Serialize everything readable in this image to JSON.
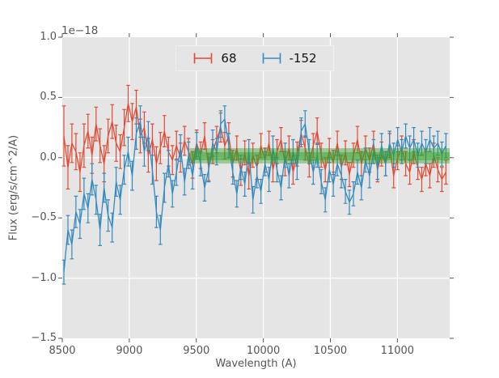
{
  "figure": {
    "background": "#ffffff",
    "axes_background": "#e5e5e5",
    "grid_color": "#ffffff",
    "tick_color": "#555555",
    "text_color": "#555555"
  },
  "chart_data": {
    "type": "line",
    "subtype": "errorbar",
    "title": "",
    "xlabel": "Wavelength (A)",
    "ylabel": "Flux (erg/s/cm^2/A)",
    "offset_text": "1e−18",
    "xlim": [
      8500,
      11390
    ],
    "ylim": [
      -1.5,
      1.0
    ],
    "grid": true,
    "xticks": [
      8500,
      9000,
      9500,
      10000,
      10500,
      11000
    ],
    "yticks": [
      1.0,
      0.5,
      0.0,
      -0.5,
      -1.0,
      -1.5
    ],
    "xtick_labels": [
      "8500",
      "9000",
      "9500",
      "10000",
      "10500",
      "11000"
    ],
    "ytick_labels": [
      "1.0",
      "0.5",
      "0.0",
      "−0.5",
      "−1.0",
      "−1.5"
    ],
    "legend": {
      "position": "upper center",
      "items": [
        {
          "label": "68",
          "color": "#e24a33"
        },
        {
          "label": "-152",
          "color": "#348abd"
        }
      ]
    },
    "band": {
      "color": "#33a02c",
      "x_start": 9450,
      "x_end": 11390,
      "outer": [
        -0.048,
        0.079
      ],
      "inner": [
        -0.021,
        0.046
      ]
    },
    "x": [
      8512,
      8542,
      8572,
      8602,
      8632,
      8662,
      8692,
      8722,
      8752,
      8782,
      8812,
      8842,
      8872,
      8902,
      8932,
      8962,
      8992,
      9022,
      9052,
      9082,
      9112,
      9142,
      9172,
      9202,
      9232,
      9262,
      9292,
      9322,
      9352,
      9382,
      9412,
      9442,
      9472,
      9502,
      9532,
      9562,
      9592,
      9622,
      9652,
      9682,
      9712,
      9742,
      9772,
      9802,
      9832,
      9862,
      9892,
      9922,
      9952,
      9982,
      10012,
      10042,
      10072,
      10102,
      10132,
      10162,
      10192,
      10222,
      10252,
      10282,
      10312,
      10342,
      10372,
      10402,
      10432,
      10462,
      10492,
      10522,
      10552,
      10582,
      10612,
      10642,
      10672,
      10702,
      10732,
      10762,
      10792,
      10822,
      10852,
      10882,
      10912,
      10942,
      10972,
      11002,
      11032,
      11062,
      11092,
      11122,
      11152,
      11182,
      11212,
      11242,
      11272,
      11302,
      11332,
      11362
    ],
    "series": [
      {
        "name": "68",
        "color": "#e24a33",
        "y": [
          0.18,
          -0.08,
          0.12,
          0.05,
          -0.12,
          0.1,
          0.22,
          0.02,
          0.28,
          0.1,
          -0.05,
          0.18,
          0.3,
          0.12,
          0.05,
          0.25,
          0.45,
          0.3,
          0.42,
          0.18,
          0.25,
          0.02,
          0.15,
          -0.05,
          0.08,
          0.22,
          0.05,
          -0.02,
          0.1,
          0.0,
          0.14,
          0.05,
          -0.06,
          0.12,
          0.02,
          0.18,
          -0.08,
          0.05,
          0.15,
          0.25,
          0.1,
          0.18,
          -0.05,
          0.08,
          -0.12,
          0.04,
          -0.15,
          0.02,
          -0.08,
          0.1,
          -0.02,
          0.12,
          -0.1,
          0.05,
          0.15,
          -0.05,
          0.08,
          -0.12,
          0.03,
          0.2,
          0.08,
          -0.06,
          0.1,
          0.22,
          0.02,
          -0.1,
          0.06,
          -0.04,
          0.12,
          -0.08,
          0.04,
          -0.14,
          0.02,
          0.15,
          -0.05,
          0.08,
          -0.02,
          0.12,
          -0.1,
          0.03,
          -0.05,
          0.1,
          -0.15,
          0.0,
          0.08,
          -0.05,
          -0.12,
          0.05,
          -0.08,
          -0.18,
          -0.05,
          -0.15,
          0.02,
          -0.1,
          -0.18,
          -0.12
        ],
        "yerr": [
          0.25,
          0.18,
          0.16,
          0.15,
          0.16,
          0.18,
          0.14,
          0.15,
          0.14,
          0.14,
          0.15,
          0.14,
          0.14,
          0.15,
          0.14,
          0.15,
          0.15,
          0.15,
          0.14,
          0.14,
          0.13,
          0.14,
          0.13,
          0.14,
          0.13,
          0.13,
          0.12,
          0.12,
          0.12,
          0.12,
          0.12,
          0.11,
          0.11,
          0.11,
          0.11,
          0.11,
          0.11,
          0.1,
          0.11,
          0.12,
          0.11,
          0.11,
          0.11,
          0.1,
          0.11,
          0.1,
          0.11,
          0.1,
          0.1,
          0.1,
          0.1,
          0.1,
          0.1,
          0.1,
          0.1,
          0.1,
          0.1,
          0.1,
          0.1,
          0.11,
          0.1,
          0.1,
          0.1,
          0.11,
          0.1,
          0.1,
          0.1,
          0.1,
          0.1,
          0.1,
          0.1,
          0.1,
          0.1,
          0.11,
          0.1,
          0.1,
          0.1,
          0.1,
          0.1,
          0.1,
          0.1,
          0.1,
          0.1,
          0.1,
          0.1,
          0.1,
          0.1,
          0.1,
          0.1,
          0.1,
          0.1,
          0.1,
          0.1,
          0.1,
          0.1,
          0.1
        ]
      },
      {
        "name": "-152",
        "color": "#348abd",
        "y": [
          -0.95,
          -0.6,
          -0.72,
          -0.45,
          -0.55,
          -0.3,
          -0.42,
          -0.18,
          -0.35,
          -0.6,
          -0.25,
          -0.48,
          -0.58,
          -0.2,
          -0.35,
          -0.1,
          0.05,
          -0.15,
          0.2,
          0.3,
          0.05,
          0.18,
          -0.1,
          -0.45,
          -0.6,
          -0.25,
          -0.05,
          -0.3,
          -0.12,
          0.08,
          -0.2,
          0.02,
          -0.15,
          0.1,
          -0.05,
          -0.25,
          -0.1,
          0.12,
          0.05,
          0.28,
          0.32,
          0.1,
          -0.12,
          -0.3,
          -0.08,
          -0.22,
          0.05,
          -0.35,
          -0.15,
          -0.28,
          -0.05,
          -0.18,
          0.08,
          -0.1,
          -0.25,
          0.02,
          -0.15,
          0.05,
          -0.08,
          0.22,
          0.28,
          0.05,
          -0.12,
          0.02,
          -0.2,
          -0.35,
          -0.1,
          -0.22,
          -0.05,
          -0.15,
          -0.28,
          -0.37,
          -0.3,
          -0.12,
          -0.25,
          -0.02,
          -0.15,
          0.05,
          -0.08,
          0.1,
          -0.05,
          0.12,
          0.02,
          0.15,
          0.05,
          0.18,
          0.08,
          0.15,
          0.02,
          0.12,
          0.05,
          0.15,
          0.08,
          0.12,
          0.03,
          0.1
        ],
        "yerr": [
          0.1,
          0.12,
          0.12,
          0.13,
          0.12,
          0.13,
          0.12,
          0.13,
          0.12,
          0.13,
          0.12,
          0.13,
          0.12,
          0.12,
          0.12,
          0.12,
          0.12,
          0.12,
          0.13,
          0.13,
          0.12,
          0.12,
          0.12,
          0.13,
          0.12,
          0.12,
          0.11,
          0.11,
          0.11,
          0.11,
          0.11,
          0.11,
          0.11,
          0.11,
          0.1,
          0.11,
          0.1,
          0.11,
          0.11,
          0.11,
          0.11,
          0.1,
          0.1,
          0.11,
          0.1,
          0.1,
          0.1,
          0.11,
          0.1,
          0.1,
          0.1,
          0.1,
          0.1,
          0.1,
          0.1,
          0.1,
          0.1,
          0.1,
          0.1,
          0.11,
          0.11,
          0.1,
          0.1,
          0.1,
          0.1,
          0.1,
          0.1,
          0.1,
          0.1,
          0.1,
          0.1,
          0.1,
          0.1,
          0.1,
          0.1,
          0.1,
          0.1,
          0.1,
          0.1,
          0.1,
          0.1,
          0.1,
          0.1,
          0.1,
          0.1,
          0.1,
          0.1,
          0.1,
          0.1,
          0.1,
          0.1,
          0.1,
          0.1,
          0.1,
          0.1,
          0.1
        ]
      }
    ]
  }
}
